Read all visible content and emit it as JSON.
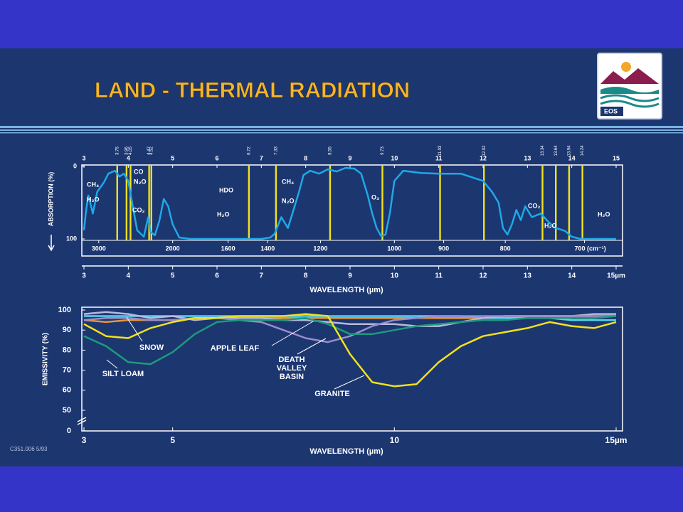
{
  "header": {
    "title": "LAND - THERMAL RADIATION",
    "logo_text": "EOS"
  },
  "chart_data": [
    {
      "type": "line",
      "xlabel": "WAVELENGTH (µm)",
      "ylabel": "ABSORPTION (%)",
      "xlim": [
        3,
        15
      ],
      "ylim": [
        0,
        100
      ],
      "y_inverted": true,
      "xticks": [
        3,
        4,
        5,
        6,
        7,
        8,
        9,
        10,
        11,
        12,
        13,
        14,
        15
      ],
      "xticks_bottom": [
        3,
        4,
        5,
        6,
        7,
        8,
        9,
        10,
        11,
        12,
        13,
        14,
        {
          "value": 15,
          "label": "15µm"
        }
      ],
      "yticks": [
        0,
        100
      ],
      "wavenumber_ticks": [
        3000,
        2000,
        1600,
        1400,
        1200,
        1000,
        900,
        800,
        {
          "value": 700,
          "label": "700 (cm⁻¹)"
        }
      ],
      "band_lines": [
        3.75,
        3.96,
        4.05,
        4.47,
        4.52,
        6.72,
        7.33,
        8.55,
        9.73,
        11.03,
        12.02,
        13.34,
        13.64,
        13.94,
        14.24
      ],
      "band_color": "#f2e21c",
      "annotations": [
        "CH₄",
        "H₂O",
        "CO",
        "N₂O",
        "CO₂",
        "HDO",
        "H₂O",
        "CH₄",
        "N₂O",
        "O₃",
        "CO₂",
        "H₂O",
        "H₂O"
      ],
      "x": [
        3.0,
        3.05,
        3.1,
        3.2,
        3.3,
        3.45,
        3.55,
        3.7,
        3.8,
        3.9,
        4.0,
        4.1,
        4.2,
        4.35,
        4.45,
        4.5,
        4.6,
        4.7,
        4.8,
        4.9,
        5.0,
        5.15,
        5.4,
        6.0,
        7.0,
        7.2,
        7.3,
        7.45,
        7.6,
        7.7,
        7.85,
        7.95,
        8.1,
        8.3,
        8.5,
        8.7,
        8.9,
        9.1,
        9.25,
        9.4,
        9.5,
        9.6,
        9.7,
        9.8,
        9.9,
        10.0,
        10.2,
        10.6,
        11.0,
        11.5,
        12.0,
        12.2,
        12.35,
        12.45,
        12.55,
        12.65,
        12.75,
        12.85,
        12.95,
        13.1,
        13.3,
        13.45,
        13.6,
        13.85,
        14.0,
        14.2,
        15.0
      ],
      "series": [
        {
          "color": "#1fa8e8",
          "values": [
            88,
            60,
            40,
            65,
            35,
            22,
            10,
            6,
            14,
            10,
            20,
            55,
            88,
            97,
            70,
            90,
            95,
            75,
            45,
            55,
            80,
            98,
            100,
            100,
            100,
            98,
            93,
            70,
            85,
            65,
            35,
            12,
            6,
            10,
            4,
            7,
            2,
            3,
            10,
            40,
            65,
            85,
            96,
            94,
            64,
            20,
            6,
            9,
            10,
            10,
            20,
            35,
            50,
            85,
            94,
            80,
            60,
            74,
            55,
            70,
            65,
            75,
            84,
            89,
            97,
            100,
            100
          ]
        }
      ]
    },
    {
      "type": "line",
      "xlabel": "WAVELENGTH (µm)",
      "ylabel": "EMISSIVITY (%)",
      "xlim": [
        3,
        15
      ],
      "ylim": [
        0,
        100
      ],
      "y_break": [
        0,
        50
      ],
      "xticks": [
        3,
        5,
        10,
        {
          "value": 15,
          "label": "15µm"
        }
      ],
      "yticks": [
        0,
        50,
        60,
        70,
        80,
        90,
        100
      ],
      "x": [
        3,
        3.5,
        4,
        4.5,
        5,
        5.5,
        6,
        6.5,
        7,
        7.5,
        8,
        8.5,
        9,
        9.5,
        10,
        10.5,
        11,
        11.5,
        12,
        12.5,
        13,
        13.5,
        14,
        14.5,
        15
      ],
      "series": [
        {
          "color": "#5ad4ee",
          "values": [
            97,
            97,
            97,
            97,
            97,
            97,
            97,
            97,
            97,
            97,
            97,
            97,
            97,
            97,
            97,
            97,
            97,
            97,
            96,
            96,
            96,
            96,
            95,
            95,
            95
          ]
        },
        {
          "name": "APPLE LEAF",
          "color": "#e8963a",
          "values": [
            95,
            94,
            95,
            95,
            95,
            96,
            96,
            96,
            96,
            96,
            96,
            96,
            96,
            96,
            96,
            96,
            96,
            96,
            96,
            97,
            97,
            97,
            97,
            97,
            97
          ]
        },
        {
          "name": "SNOW",
          "color": "#b9b9dc",
          "values": [
            98,
            99,
            98,
            96,
            97,
            95,
            96,
            96,
            96,
            95,
            95,
            94,
            93,
            93,
            93,
            92,
            92,
            94,
            96,
            97,
            97,
            97,
            97,
            98,
            98
          ]
        },
        {
          "name": "DEATH VALLEY BASIN",
          "color": "#9a8ccc",
          "values": [
            95,
            96,
            96,
            95,
            95,
            96,
            96,
            95,
            94,
            90,
            86,
            84,
            87,
            92,
            95,
            96,
            97,
            97,
            97,
            97,
            97,
            97,
            97,
            97,
            97
          ]
        },
        {
          "name": "SILT LOAM",
          "color": "#1d9a7c",
          "values": [
            87,
            82,
            74,
            73,
            79,
            88,
            94,
            95,
            95,
            95,
            96,
            93,
            88,
            88,
            90,
            92,
            93,
            94,
            95,
            95,
            96,
            96,
            96,
            96,
            97
          ]
        },
        {
          "name": "GRANITE",
          "color": "#f2e21c",
          "values": [
            93,
            87,
            86,
            91,
            94,
            96,
            96,
            97,
            97,
            97,
            98,
            97,
            78,
            64,
            62,
            63,
            74,
            82,
            87,
            89,
            91,
            94,
            92,
            91,
            94
          ]
        }
      ]
    }
  ],
  "footer": {
    "code": "C351.006 5/93"
  }
}
